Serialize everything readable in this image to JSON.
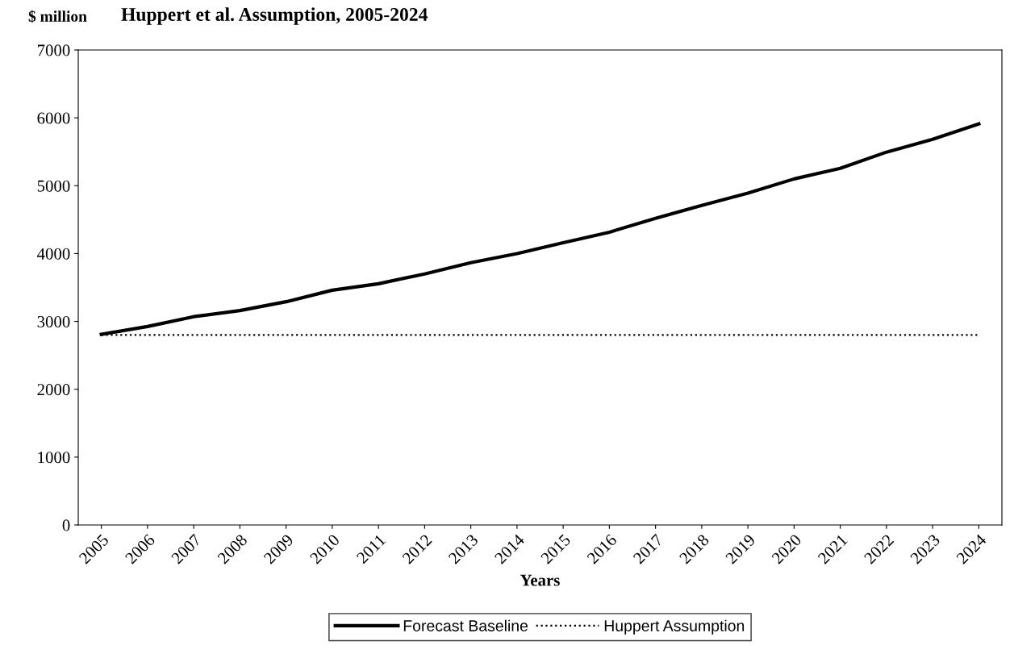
{
  "chart_data": {
    "type": "line",
    "title": "Huppert et al. Assumption, 2005-2024",
    "ylabel": "$ million",
    "xlabel": "Years",
    "categories": [
      "2005",
      "2006",
      "2007",
      "2008",
      "2009",
      "2010",
      "2011",
      "2012",
      "2013",
      "2014",
      "2015",
      "2016",
      "2017",
      "2018",
      "2019",
      "2020",
      "2021",
      "2022",
      "2023",
      "2024"
    ],
    "series": [
      {
        "name": "Forecast Baseline",
        "color": "#000000",
        "line_style": "solid",
        "values": [
          2810,
          2925,
          3070,
          3160,
          3290,
          3460,
          3555,
          3700,
          3865,
          4000,
          4160,
          4315,
          4520,
          4710,
          4890,
          5100,
          5255,
          5495,
          5685,
          5910
        ]
      },
      {
        "name": "Huppert Assumption",
        "color": "#000000",
        "line_style": "dotted",
        "values": [
          2800,
          2800,
          2800,
          2800,
          2800,
          2800,
          2800,
          2800,
          2800,
          2800,
          2800,
          2800,
          2800,
          2800,
          2800,
          2800,
          2800,
          2800,
          2800,
          2800
        ]
      }
    ],
    "ylim": [
      0,
      7000
    ],
    "yticks": [
      0,
      1000,
      2000,
      3000,
      4000,
      5000,
      6000,
      7000
    ],
    "grid": false,
    "legend": "bottom",
    "marker": "none"
  }
}
